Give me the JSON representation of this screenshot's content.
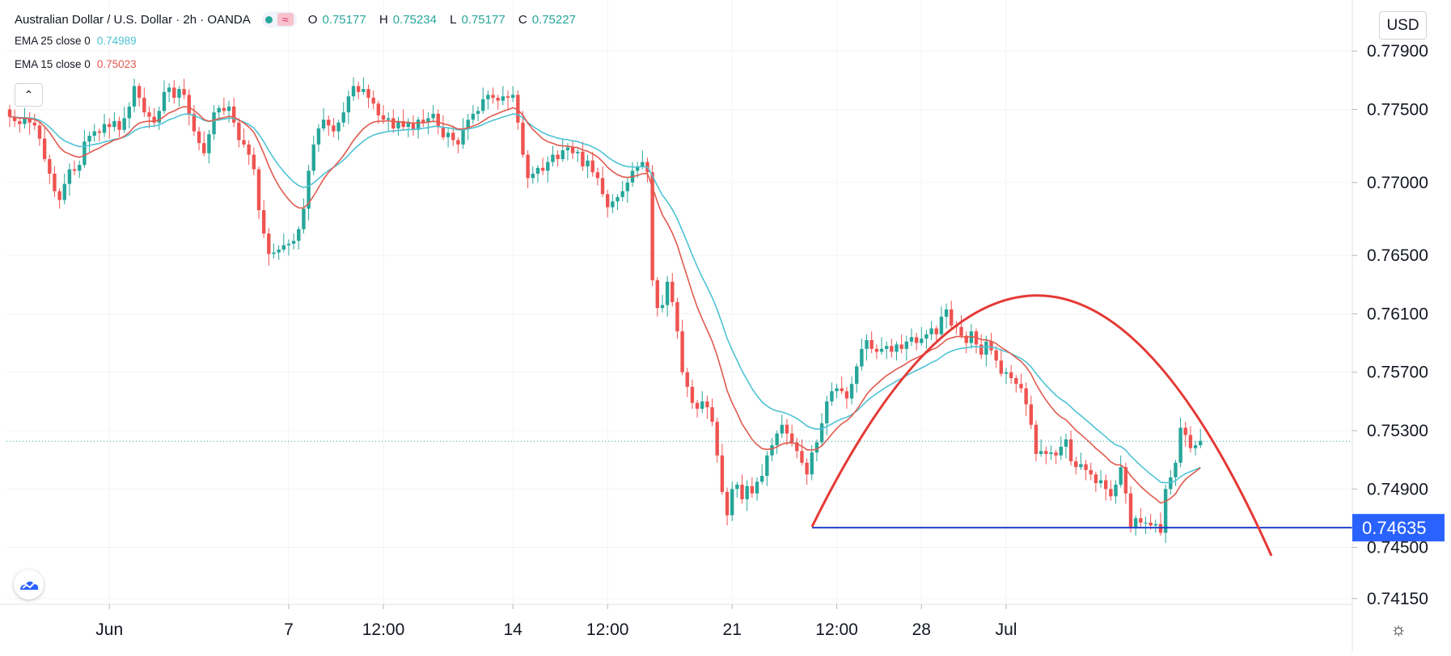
{
  "legend": {
    "symbol": "Australian Dollar / U.S. Dollar · 2h · OANDA",
    "wave_glyph": "≈",
    "ohlc": [
      {
        "label": "O",
        "value": "0.75177"
      },
      {
        "label": "H",
        "value": "0.75234"
      },
      {
        "label": "L",
        "value": "0.75177"
      },
      {
        "label": "C",
        "value": "0.75227"
      }
    ],
    "ema25": {
      "name": "EMA 25 close 0",
      "value": "0.74989",
      "color": "#4ec3d4"
    },
    "ema15": {
      "name": "EMA 15 close 0",
      "value": "0.75023",
      "color": "#e05a4e"
    }
  },
  "collapse_glyph": "⌃",
  "currency": "USD",
  "settings_glyph": "☼",
  "colors": {
    "up": "#26a69a",
    "down": "#ef5350",
    "support_line": "#1e3fcf",
    "arc": "#e53935",
    "last_price_line": "#26a69a",
    "price_label_bg": "#2962ff"
  },
  "chart_data": {
    "type": "candlestick",
    "symbol": "AUD/USD",
    "interval": "2h",
    "x_ticks": [
      "Jun",
      "7",
      "12:00",
      "14",
      "12:00",
      "21",
      "12:00",
      "28",
      "Jul"
    ],
    "y_ticks": [
      "0.77900",
      "0.77500",
      "0.77000",
      "0.76500",
      "0.76100",
      "0.75700",
      "0.75300",
      "0.74900",
      "0.74500",
      "0.74150"
    ],
    "ylim": [
      0.7415,
      0.7795
    ],
    "last_price": 0.75227,
    "support_level": "0.74635",
    "support_level_value": 0.74635,
    "close": [
      0.7745,
      0.7742,
      0.774,
      0.7744,
      0.7741,
      0.7739,
      0.773,
      0.7716,
      0.7706,
      0.7694,
      0.7688,
      0.7699,
      0.7709,
      0.7708,
      0.7712,
      0.7728,
      0.7732,
      0.7735,
      0.7734,
      0.774,
      0.7738,
      0.7742,
      0.7736,
      0.7744,
      0.7752,
      0.7766,
      0.7758,
      0.7748,
      0.7745,
      0.7741,
      0.7749,
      0.7762,
      0.7765,
      0.7758,
      0.7764,
      0.776,
      0.7747,
      0.7735,
      0.7727,
      0.772,
      0.7733,
      0.7748,
      0.7751,
      0.7749,
      0.7752,
      0.7741,
      0.7729,
      0.7726,
      0.7719,
      0.7709,
      0.7681,
      0.7665,
      0.7651,
      0.7652,
      0.7654,
      0.7657,
      0.7658,
      0.766,
      0.7668,
      0.7682,
      0.7708,
      0.7726,
      0.7737,
      0.7743,
      0.7739,
      0.7735,
      0.7741,
      0.7748,
      0.7759,
      0.7766,
      0.7762,
      0.7764,
      0.7758,
      0.7754,
      0.7746,
      0.7743,
      0.7744,
      0.7737,
      0.7742,
      0.7738,
      0.7741,
      0.7736,
      0.7743,
      0.7741,
      0.7744,
      0.7747,
      0.7738,
      0.7731,
      0.7734,
      0.7729,
      0.7726,
      0.7737,
      0.7743,
      0.7747,
      0.7749,
      0.7757,
      0.776,
      0.7758,
      0.7756,
      0.7759,
      0.7758,
      0.776,
      0.7741,
      0.7719,
      0.7703,
      0.7706,
      0.771,
      0.7708,
      0.7714,
      0.7719,
      0.7716,
      0.7722,
      0.7724,
      0.772,
      0.7721,
      0.7711,
      0.7715,
      0.7707,
      0.7703,
      0.7692,
      0.7683,
      0.7687,
      0.769,
      0.7694,
      0.77,
      0.7708,
      0.7711,
      0.7714,
      0.7707,
      0.7633,
      0.7614,
      0.7616,
      0.7632,
      0.7618,
      0.7598,
      0.757,
      0.756,
      0.7549,
      0.7545,
      0.755,
      0.7546,
      0.7536,
      0.7513,
      0.7488,
      0.7472,
      0.749,
      0.7493,
      0.7483,
      0.7492,
      0.7487,
      0.7495,
      0.7499,
      0.7513,
      0.752,
      0.7528,
      0.7534,
      0.7528,
      0.7522,
      0.7516,
      0.7508,
      0.75,
      0.7515,
      0.7522,
      0.7535,
      0.755,
      0.7557,
      0.7559,
      0.7557,
      0.7552,
      0.7562,
      0.7574,
      0.7586,
      0.7592,
      0.7586,
      0.7584,
      0.7586,
      0.7588,
      0.7584,
      0.7589,
      0.7586,
      0.7591,
      0.7594,
      0.759,
      0.7593,
      0.7596,
      0.76,
      0.7596,
      0.7608,
      0.7613,
      0.7602,
      0.7601,
      0.7595,
      0.759,
      0.7598,
      0.7589,
      0.7582,
      0.7591,
      0.7585,
      0.7578,
      0.7569,
      0.757,
      0.7566,
      0.7562,
      0.7559,
      0.7548,
      0.7534,
      0.7514,
      0.7516,
      0.7514,
      0.7515,
      0.7513,
      0.7519,
      0.7524,
      0.7509,
      0.7505,
      0.7507,
      0.7503,
      0.75,
      0.7494,
      0.7496,
      0.749,
      0.7485,
      0.7493,
      0.7505,
      0.7487,
      0.7464,
      0.747,
      0.7467,
      0.7467,
      0.7465,
      0.7466,
      0.746,
      0.749,
      0.7498,
      0.7508,
      0.7532,
      0.7527,
      0.7518,
      0.752,
      0.7523
    ]
  }
}
